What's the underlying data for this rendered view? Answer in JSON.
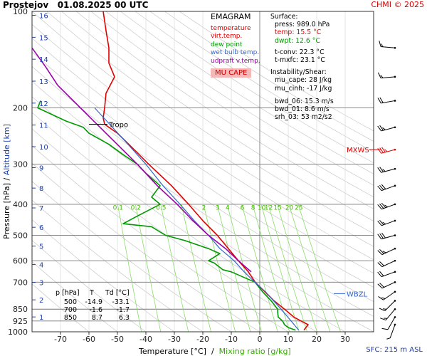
{
  "header": {
    "station": "Prostejov",
    "datetime": "01.08.2025 00 UTC",
    "copyright": "CHMI © 2025",
    "sfc_label": "SFC: 215 m ASL"
  },
  "x_axis_title": {
    "temp": "Temperature [°C]",
    "sep": "/",
    "mix": "Mixing ratio [g/kg]"
  },
  "y_axis_title": {
    "pressure": "Pressure [hPa]",
    "sep": "/",
    "alt": "Altitude [km]"
  },
  "legend": {
    "title": "EMAGRAM",
    "items": [
      {
        "label": "temperature",
        "color": "#e00000"
      },
      {
        "label": "virt.temp.",
        "color": "#e00000"
      },
      {
        "label": "dew point",
        "color": "#009900"
      },
      {
        "label": "wet bulb temp.",
        "color": "#3366cc"
      },
      {
        "label": "udpraft v.temp.",
        "color": "#9900aa"
      }
    ],
    "badge": "MU CAPE"
  },
  "info": {
    "surface_title": "Surface:",
    "surface": [
      "press: 989.0 hPa",
      "temp: 15.5 °C",
      "dwpt: 12.6 °C"
    ],
    "surface_colors": [
      "#000000",
      "#e00000",
      "#009900"
    ],
    "conv": [
      "t-conv: 22.3 °C",
      "t-mxfc: 23.1 °C"
    ],
    "instab_title": "Instability/Shear:",
    "instab": [
      "mu_cape: 28 J/kg",
      "mu_cinh: -17 J/kg",
      "",
      "bwd_06: 15.3 m/s",
      "bwd_01: 8.6 m/s",
      "srh_03: 53 m2/s2"
    ]
  },
  "level_table": {
    "headers": [
      "p [hPa]",
      "T",
      "Td [°C]"
    ],
    "rows": [
      [
        "500",
        "-14.9",
        "-33.1"
      ],
      [
        "700",
        "-1.6",
        "-1.7"
      ],
      [
        "850",
        "8.7",
        "6.3"
      ]
    ]
  },
  "annotations": {
    "tropo": "Tropo",
    "mxws": "MXWS",
    "wbzl": "WBZL"
  },
  "chart_data": {
    "type": "line",
    "title": "EMAGRAM",
    "xlabel": "Temperature [°C] / Mixing ratio [g/kg]",
    "ylabel": "Pressure [hPa] / Altitude [km]",
    "xlim": [
      -80,
      40
    ],
    "ylim": [
      1000,
      100
    ],
    "y_scale": "log",
    "x_ticks": [
      -70,
      -60,
      -50,
      -40,
      -30,
      -20,
      -10,
      0,
      10,
      20,
      30
    ],
    "pressure_ticks": [
      100,
      200,
      300,
      400,
      500,
      600,
      700,
      850,
      925,
      1000
    ],
    "altitude_ticks_km": [
      1,
      2,
      3,
      4,
      5,
      6,
      7,
      8,
      9,
      10,
      11,
      12,
      13,
      14,
      15,
      16
    ],
    "mixing_ratio_labels": [
      "0.1",
      "0.2",
      "0.5",
      "1",
      "2",
      "3",
      "4",
      "6",
      "8",
      "10",
      "12",
      "15",
      "20",
      "25"
    ],
    "mixing_ratio_values": [
      0.1,
      0.2,
      0.5,
      1,
      2,
      3,
      4,
      6,
      8,
      10,
      12,
      15,
      20,
      25
    ],
    "series": [
      {
        "name": "temperature",
        "color": "#e00000",
        "p": [
          989,
          950,
          925,
          900,
          850,
          800,
          700,
          650,
          600,
          550,
          500,
          450,
          400,
          350,
          300,
          260,
          240,
          230,
          225,
          215,
          200,
          180,
          160,
          145,
          130,
          115,
          100
        ],
        "t": [
          15.5,
          17,
          14.5,
          12,
          8.7,
          5,
          -1.6,
          -4,
          -7.5,
          -11,
          -14.9,
          -20,
          -25,
          -31,
          -39,
          -46,
          -50,
          -53,
          -54.5,
          -55,
          -54.5,
          -54,
          -51,
          -53,
          -53,
          -54,
          -55
        ]
      },
      {
        "name": "dew point",
        "color": "#009900",
        "p": [
          989,
          970,
          950,
          925,
          900,
          870,
          850,
          800,
          750,
          700,
          650,
          640,
          610,
          600,
          570,
          550,
          520,
          500,
          470,
          460,
          440,
          400,
          380,
          350,
          320,
          300,
          280,
          260,
          240,
          230,
          220,
          200,
          190
        ],
        "t": [
          12.6,
          10,
          8.7,
          8,
          6.5,
          6.3,
          6.3,
          4,
          1,
          -1.7,
          -10,
          -13,
          -16,
          -18,
          -14,
          -18,
          -26,
          -33.1,
          -38,
          -48,
          -44,
          -35,
          -38,
          -35,
          -40,
          -43,
          -48,
          -53,
          -60,
          -62,
          -68,
          -78,
          -77
        ]
      },
      {
        "name": "wet bulb temp.",
        "color": "#3366cc",
        "p": [
          989,
          925,
          850,
          750,
          700,
          650,
          600,
          550,
          500,
          450,
          400,
          350,
          300,
          250,
          200
        ],
        "t": [
          13.7,
          11,
          7.5,
          2,
          -1.7,
          -5.5,
          -9,
          -14,
          -18,
          -23,
          -28,
          -34,
          -40,
          -48,
          -58
        ]
      },
      {
        "name": "udpraft v.temp.",
        "color": "#9900aa",
        "p": [
          650,
          600,
          550,
          500,
          450,
          400,
          350,
          300,
          250,
          200,
          170,
          150,
          130
        ],
        "t": [
          -3,
          -7.5,
          -12,
          -18,
          -23.5,
          -29,
          -36,
          -43,
          -52,
          -63,
          -71,
          -75,
          -80
        ]
      }
    ]
  },
  "wind_barbs": {
    "p": [
      130,
      160,
      190,
      230,
      270,
      310,
      350,
      400,
      450,
      500,
      550,
      600,
      650,
      700,
      750,
      800,
      850,
      900,
      950
    ],
    "dir_deg": [
      275,
      265,
      260,
      255,
      255,
      255,
      250,
      250,
      250,
      255,
      245,
      245,
      250,
      245,
      235,
      225,
      220,
      210,
      200
    ],
    "speed_kt": [
      15,
      18,
      20,
      25,
      38,
      28,
      30,
      35,
      25,
      30,
      25,
      20,
      20,
      20,
      15,
      18,
      18,
      12,
      8
    ]
  }
}
